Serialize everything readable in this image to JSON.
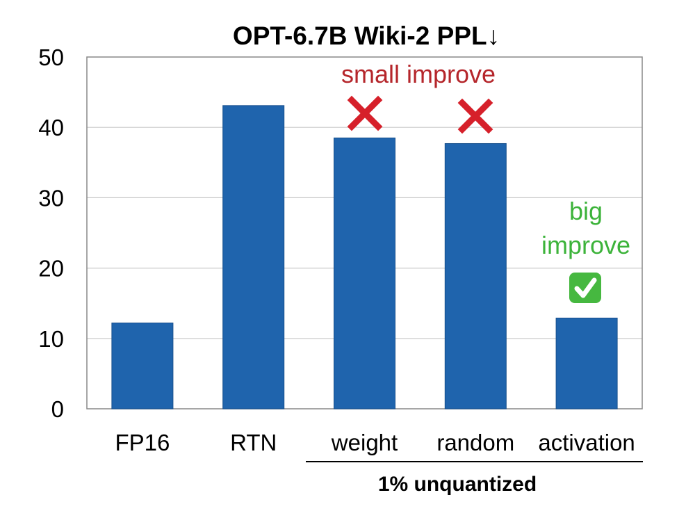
{
  "chart_data": {
    "type": "bar",
    "title": "OPT-6.7B Wiki-2 PPL↓",
    "categories": [
      "FP16",
      "RTN",
      "weight",
      "random",
      "activation"
    ],
    "values": [
      12.2,
      43.1,
      38.5,
      37.7,
      12.9
    ],
    "ylim": [
      0,
      50
    ],
    "yticks": [
      "0",
      "10",
      "20",
      "30",
      "40",
      "50"
    ],
    "grid": true,
    "bar_color": "#1f64ad",
    "group_label": "1% unquantized",
    "annotations": {
      "small": "small improve",
      "big_line1": "big",
      "big_line2": "improve"
    },
    "colors": {
      "small_text": "#b5262b",
      "big_text": "#3cb33a",
      "cross": "#d6202a",
      "check_bg": "#46b840"
    },
    "icons": [
      "cross-mark-icon",
      "cross-mark-icon",
      "check-mark-icon"
    ]
  }
}
